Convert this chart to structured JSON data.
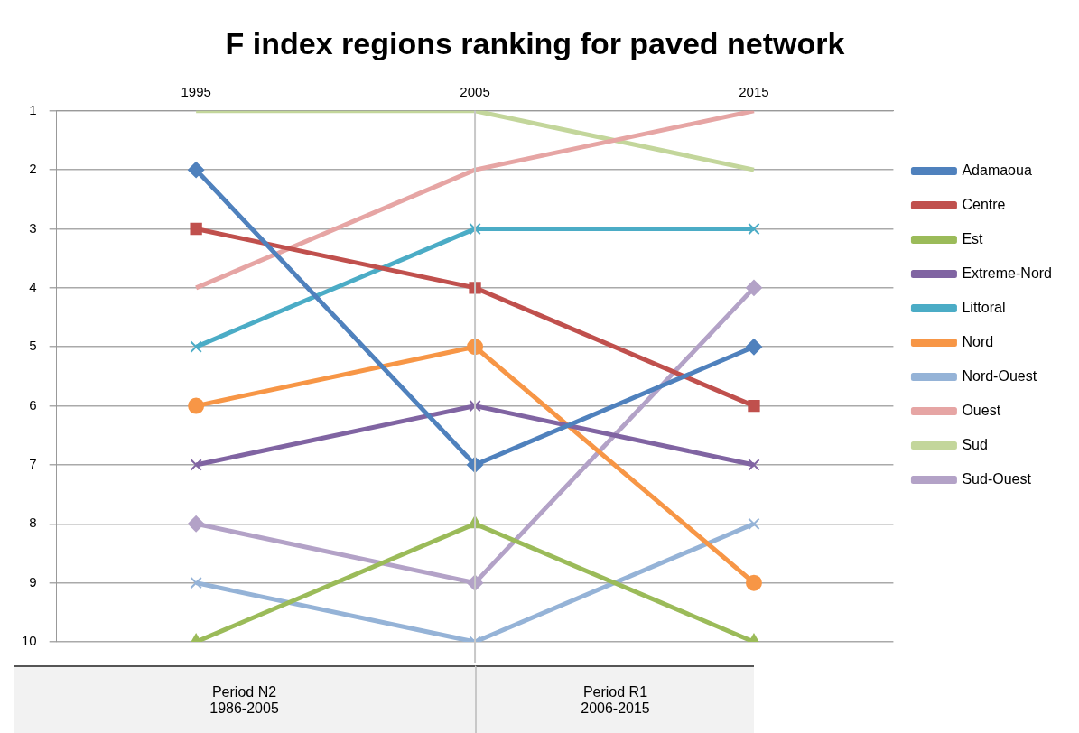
{
  "chart_data": {
    "type": "line",
    "title": "F index regions ranking for paved network",
    "categories": [
      "1995",
      "2005",
      "2015"
    ],
    "series": [
      {
        "name": "Adamaoua",
        "color": "#4f81bd",
        "marker": "diamond",
        "values": [
          2,
          7,
          5
        ]
      },
      {
        "name": "Centre",
        "color": "#c0504d",
        "marker": "square",
        "values": [
          3,
          4,
          6
        ]
      },
      {
        "name": "Est",
        "color": "#9bbb59",
        "marker": "triangle",
        "values": [
          10,
          8,
          10
        ]
      },
      {
        "name": "Extreme-Nord",
        "color": "#8064a2",
        "marker": "cross",
        "values": [
          7,
          6,
          7
        ]
      },
      {
        "name": "Littoral",
        "color": "#4bacc6",
        "marker": "cross",
        "values": [
          5,
          3,
          3
        ]
      },
      {
        "name": "Nord",
        "color": "#f79646",
        "marker": "circle",
        "values": [
          6,
          5,
          9
        ]
      },
      {
        "name": "Nord-Ouest",
        "color": "#95b3d7",
        "marker": "cross",
        "values": [
          9,
          10,
          8
        ]
      },
      {
        "name": "Ouest",
        "color": "#e6a5a4",
        "marker": "none",
        "values": [
          4,
          2,
          1
        ]
      },
      {
        "name": "Sud",
        "color": "#c3d69b",
        "marker": "none",
        "values": [
          1,
          1,
          2
        ]
      },
      {
        "name": "Sud-Ouest",
        "color": "#b3a2c7",
        "marker": "diamond",
        "values": [
          8,
          9,
          4
        ]
      }
    ],
    "ylim": [
      10,
      1
    ],
    "yticks": [
      1,
      2,
      3,
      4,
      5,
      6,
      7,
      8,
      9,
      10
    ],
    "grid": "y",
    "legend": "right",
    "ref_lines": [
      {
        "axis": "x",
        "value": "2005",
        "color": "#c8c8c8"
      }
    ],
    "annotations": [
      "Period N2\n1986-2005",
      "Period R1\n2006-2015"
    ]
  }
}
